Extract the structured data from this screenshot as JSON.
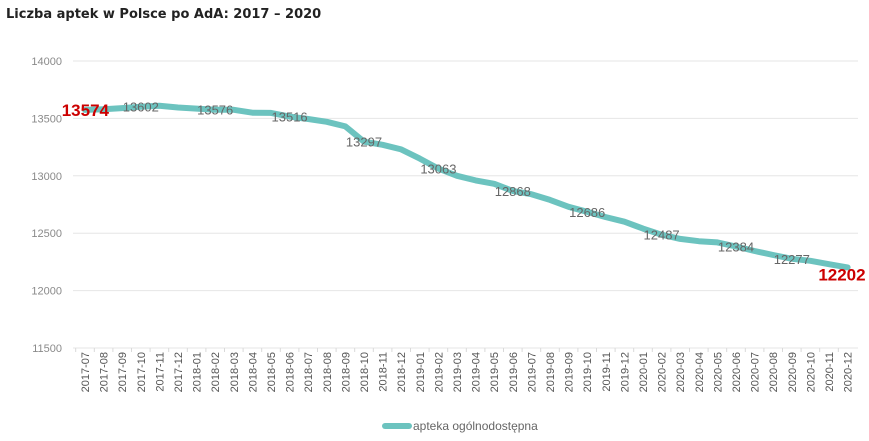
{
  "chart_data": {
    "type": "line",
    "title": "Liczba aptek w Polsce po AdA: 2017 – 2020",
    "xlabel": "",
    "ylabel": "",
    "ylim": [
      11500,
      14000
    ],
    "yticks": [
      11500,
      12000,
      12500,
      13000,
      13500,
      14000
    ],
    "grid": true,
    "legend_position": "bottom",
    "categories": [
      "2017-07",
      "2017-08",
      "2017-09",
      "2017-10",
      "2017-11",
      "2017-12",
      "2018-01",
      "2018-02",
      "2018-03",
      "2018-04",
      "2018-05",
      "2018-06",
      "2018-07",
      "2018-08",
      "2018-09",
      "2018-10",
      "2018-11",
      "2018-12",
      "2019-01",
      "2019-02",
      "2019-03",
      "2019-04",
      "2019-05",
      "2019-06",
      "2019-07",
      "2019-08",
      "2019-09",
      "2019-10",
      "2019-11",
      "2019-12",
      "2020-01",
      "2020-02",
      "2020-03",
      "2020-04",
      "2020-05",
      "2020-06",
      "2020-07",
      "2020-08",
      "2020-09",
      "2020-10",
      "2020-11",
      "2020-12"
    ],
    "series": [
      {
        "name": "apteka ogólnodostępna",
        "color": "#6cc3bf",
        "values": [
          13574,
          13580,
          13590,
          13602,
          13610,
          13595,
          13585,
          13576,
          13575,
          13550,
          13548,
          13516,
          13495,
          13470,
          13430,
          13297,
          13270,
          13230,
          13150,
          13063,
          13000,
          12960,
          12930,
          12868,
          12840,
          12790,
          12730,
          12686,
          12640,
          12600,
          12540,
          12487,
          12450,
          12430,
          12420,
          12384,
          12345,
          12310,
          12277,
          12260,
          12230,
          12202
        ]
      }
    ],
    "data_labels": [
      {
        "x": "2017-07",
        "value": "13574",
        "highlight": true
      },
      {
        "x": "2017-10",
        "value": "13602",
        "highlight": false
      },
      {
        "x": "2018-02",
        "value": "13576",
        "highlight": false
      },
      {
        "x": "2018-06",
        "value": "13516",
        "highlight": false
      },
      {
        "x": "2018-10",
        "value": "13297",
        "highlight": false
      },
      {
        "x": "2019-02",
        "value": "13063",
        "highlight": false
      },
      {
        "x": "2019-06",
        "value": "12868",
        "highlight": false
      },
      {
        "x": "2019-10",
        "value": "12686",
        "highlight": false
      },
      {
        "x": "2020-02",
        "value": "12487",
        "highlight": false
      },
      {
        "x": "2020-06",
        "value": "12384",
        "highlight": false
      },
      {
        "x": "2020-09",
        "value": "12277",
        "highlight": false
      },
      {
        "x": "2020-12",
        "value": "12202",
        "highlight": true
      }
    ],
    "highlight_color": "#cc0000",
    "label_color": "#666666"
  }
}
